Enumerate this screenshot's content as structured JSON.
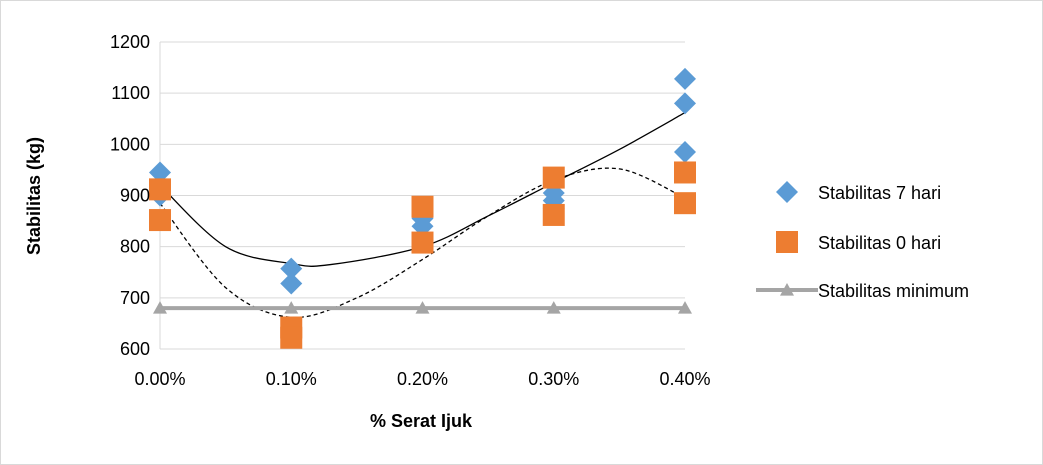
{
  "chart_data": {
    "type": "scatter",
    "xlabel": "% Serat Ijuk",
    "ylabel": "Stabilitas (kg)",
    "x_categories": [
      "0.00%",
      "0.10%",
      "0.20%",
      "0.30%",
      "0.40%"
    ],
    "ylim": [
      600,
      1200
    ],
    "yticks": [
      600,
      700,
      800,
      900,
      1000,
      1100,
      1200
    ],
    "grid": "horizontal",
    "legend_position": "right",
    "series": [
      {
        "name": "Stabilitas 7 hari",
        "marker": "diamond",
        "color": "#5b9bd5",
        "points": [
          {
            "x": 0.0,
            "y": 945
          },
          {
            "x": 0.0,
            "y": 920
          },
          {
            "x": 0.0,
            "y": 900
          },
          {
            "x": 0.1,
            "y": 757
          },
          {
            "x": 0.1,
            "y": 728
          },
          {
            "x": 0.2,
            "y": 855
          },
          {
            "x": 0.2,
            "y": 840
          },
          {
            "x": 0.3,
            "y": 905
          },
          {
            "x": 0.3,
            "y": 890
          },
          {
            "x": 0.3,
            "y": 875
          },
          {
            "x": 0.4,
            "y": 1128
          },
          {
            "x": 0.4,
            "y": 1080
          },
          {
            "x": 0.4,
            "y": 985
          }
        ]
      },
      {
        "name": "Stabilitas 0 hari",
        "marker": "square",
        "color": "#ed7d31",
        "points": [
          {
            "x": 0.0,
            "y": 912
          },
          {
            "x": 0.0,
            "y": 852
          },
          {
            "x": 0.1,
            "y": 642
          },
          {
            "x": 0.1,
            "y": 622
          },
          {
            "x": 0.2,
            "y": 878
          },
          {
            "x": 0.2,
            "y": 808
          },
          {
            "x": 0.3,
            "y": 935
          },
          {
            "x": 0.3,
            "y": 862
          },
          {
            "x": 0.4,
            "y": 945
          },
          {
            "x": 0.4,
            "y": 885
          }
        ]
      },
      {
        "name": "Stabilitas minimum",
        "marker": "triangle",
        "color": "#a5a5a5",
        "line": true,
        "points": [
          {
            "x": 0.0,
            "y": 680
          },
          {
            "x": 0.1,
            "y": 680
          },
          {
            "x": 0.2,
            "y": 680
          },
          {
            "x": 0.3,
            "y": 680
          },
          {
            "x": 0.4,
            "y": 680
          }
        ]
      }
    ],
    "trendlines": [
      {
        "style": "solid",
        "color": "#000000",
        "points": [
          {
            "x": 0.0,
            "y": 920
          },
          {
            "x": 0.05,
            "y": 800
          },
          {
            "x": 0.1,
            "y": 767
          },
          {
            "x": 0.13,
            "y": 765
          },
          {
            "x": 0.2,
            "y": 800
          },
          {
            "x": 0.25,
            "y": 860
          },
          {
            "x": 0.3,
            "y": 925
          },
          {
            "x": 0.35,
            "y": 990
          },
          {
            "x": 0.4,
            "y": 1062
          }
        ]
      },
      {
        "style": "dashed",
        "color": "#000000",
        "points": [
          {
            "x": 0.0,
            "y": 885
          },
          {
            "x": 0.05,
            "y": 720
          },
          {
            "x": 0.1,
            "y": 662
          },
          {
            "x": 0.15,
            "y": 700
          },
          {
            "x": 0.2,
            "y": 775
          },
          {
            "x": 0.25,
            "y": 860
          },
          {
            "x": 0.3,
            "y": 930
          },
          {
            "x": 0.35,
            "y": 952
          },
          {
            "x": 0.4,
            "y": 895
          }
        ]
      }
    ]
  }
}
